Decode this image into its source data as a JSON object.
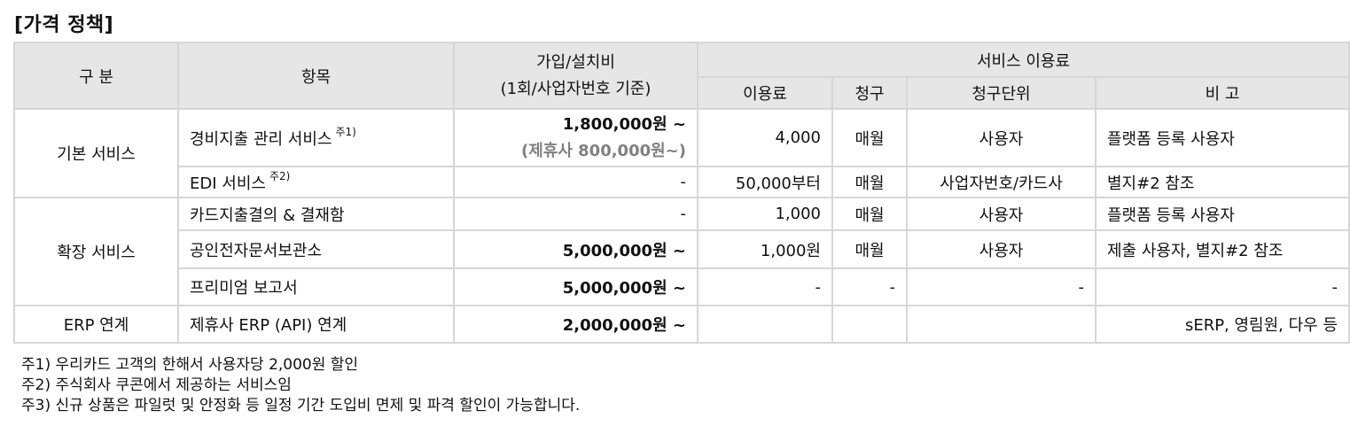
{
  "title": "[가격 정책]",
  "headers": {
    "category": "구 분",
    "item": "항목",
    "setup_fee_line1": "가입/설치비",
    "setup_fee_line2": "(1회/사업자번호 기준)",
    "service_fee": "서비스 이용료",
    "usage_fee": "이용료",
    "billing": "청구",
    "billing_unit": "청구단위",
    "remarks": "비 고"
  },
  "groups": {
    "basic": "기본 서비스",
    "extended": "확장 서비스",
    "erp": "ERP 연계"
  },
  "rows": [
    {
      "item": "경비지출 관리 서비스",
      "note": "주1)",
      "setup": "1,800,000원 ~",
      "setup_sub": "(제휴사 800,000원~)",
      "fee": "4,000",
      "billing": "매월",
      "unit": "사용자",
      "remarks": "플랫폼 등록 사용자"
    },
    {
      "item": "EDI 서비스",
      "note": "주2)",
      "setup": "-",
      "fee": "50,000부터",
      "billing": "매월",
      "unit": "사업자번호/카드사",
      "remarks": "별지#2 참조"
    },
    {
      "item": "카드지출결의 & 결재함",
      "setup": "-",
      "fee": "1,000",
      "billing": "매월",
      "unit": "사용자",
      "remarks": "플랫폼 등록 사용자"
    },
    {
      "item": "공인전자문서보관소",
      "setup": "5,000,000원 ~",
      "fee": "1,000원",
      "billing": "매월",
      "unit": "사용자",
      "remarks": "제출 사용자, 별지#2 참조"
    },
    {
      "item": "프리미엄 보고서",
      "setup": "5,000,000원 ~",
      "fee": "-",
      "billing": "-",
      "unit": "-",
      "remarks": "-"
    },
    {
      "item": "제휴사 ERP (API) 연계",
      "setup": "2,000,000원 ~",
      "fee": "",
      "billing": "",
      "unit": "",
      "remarks": "sERP, 영림원, 다우 등"
    }
  ],
  "notes": [
    "주1) 우리카드 고객의 한해서 사용자당 2,000원 할인",
    "주2) 주식회사 쿠콘에서 제공하는 서비스임",
    "주3) 신규 상품은 파일럿 및 안정화 등 일정 기간 도입비 면제 및 파격 할인이 가능합니다."
  ]
}
